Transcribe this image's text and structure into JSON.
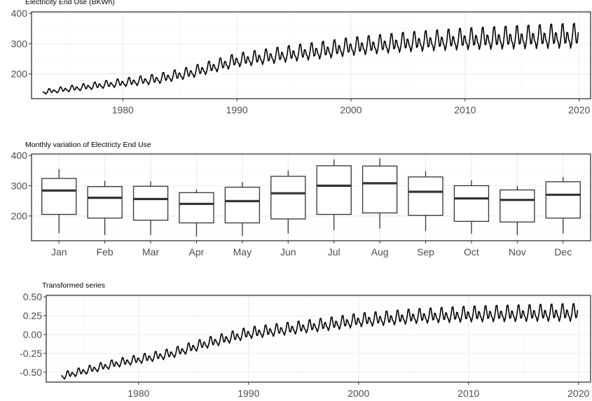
{
  "chart_data": [
    {
      "type": "line",
      "title": "Electricity End Use (BKWh)",
      "xlabel": "",
      "ylabel": "",
      "xlim": [
        1972,
        2021
      ],
      "ylim": [
        118,
        405
      ],
      "x_ticks": [
        1980,
        1990,
        2000,
        2010,
        2020
      ],
      "x_tick_labels": [
        "1980",
        "1990",
        "2000",
        "2010",
        "2020"
      ],
      "y_ticks": [
        200,
        300,
        400
      ],
      "y_tick_labels": [
        "200",
        "300",
        "400"
      ],
      "grid": true,
      "series": [
        {
          "x_range": [
            1973,
            2019.917
          ],
          "frequency": "monthly",
          "y_annual_anchors": [
            [
              1973,
              140
            ],
            [
              1978,
              163
            ],
            [
              1983,
              183
            ],
            [
              1986,
              205
            ],
            [
              1990,
              245
            ],
            [
              1995,
              268
            ],
            [
              1998,
              280
            ],
            [
              2000,
              290
            ],
            [
              2005,
              305
            ],
            [
              2010,
              315
            ],
            [
              2019,
              325
            ]
          ],
          "seasonal_amplitude": [
            [
              1973,
              8
            ],
            [
              1995,
              28
            ],
            [
              2019,
              42
            ]
          ],
          "seasonal_pattern": [
            0.25,
            -0.3,
            -0.45,
            -0.95,
            -0.6,
            0.05,
            0.95,
            1.0,
            0.2,
            -0.55,
            -0.5,
            0.3
          ]
        }
      ]
    },
    {
      "type": "boxplot",
      "title": "Monthly variation of Electricty End Use",
      "xlabel": "",
      "ylabel": "",
      "ylim": [
        118,
        405
      ],
      "y_ticks": [
        200,
        300,
        400
      ],
      "y_tick_labels": [
        "200",
        "300",
        "400"
      ],
      "grid": true,
      "categories": [
        "Jan",
        "Feb",
        "Mar",
        "Apr",
        "May",
        "Jun",
        "Jul",
        "Aug",
        "Sep",
        "Oct",
        "Nov",
        "Dec"
      ],
      "boxes": [
        {
          "min": 143,
          "q1": 205,
          "median": 284,
          "q3": 324,
          "max": 355
        },
        {
          "min": 137,
          "q1": 193,
          "median": 260,
          "q3": 297,
          "max": 316
        },
        {
          "min": 137,
          "q1": 186,
          "median": 256,
          "q3": 298,
          "max": 315
        },
        {
          "min": 132,
          "q1": 177,
          "median": 240,
          "q3": 277,
          "max": 288
        },
        {
          "min": 134,
          "q1": 177,
          "median": 249,
          "q3": 295,
          "max": 312
        },
        {
          "min": 142,
          "q1": 190,
          "median": 275,
          "q3": 331,
          "max": 350
        },
        {
          "min": 153,
          "q1": 205,
          "median": 300,
          "q3": 366,
          "max": 387
        },
        {
          "min": 158,
          "q1": 210,
          "median": 308,
          "q3": 365,
          "max": 391
        },
        {
          "min": 150,
          "q1": 202,
          "median": 280,
          "q3": 329,
          "max": 348
        },
        {
          "min": 141,
          "q1": 182,
          "median": 258,
          "q3": 300,
          "max": 318
        },
        {
          "min": 137,
          "q1": 180,
          "median": 253,
          "q3": 286,
          "max": 299
        },
        {
          "min": 142,
          "q1": 193,
          "median": 270,
          "q3": 313,
          "max": 329
        }
      ]
    },
    {
      "type": "line",
      "title": "Transformed series",
      "xlabel": "",
      "ylabel": "",
      "xlim": [
        1971.6,
        2021.1
      ],
      "ylim": [
        -0.63,
        0.52
      ],
      "x_ticks": [
        1980,
        1990,
        2000,
        2010,
        2020
      ],
      "x_tick_labels": [
        "1980",
        "1990",
        "2000",
        "2010",
        "2020"
      ],
      "y_ticks": [
        0.5,
        0.25,
        0.0,
        -0.25,
        -0.5
      ],
      "y_tick_labels": [
        "0.50",
        "0.25",
        "0.00",
        "-0.25",
        "-0.50"
      ],
      "grid": true,
      "series": [
        {
          "x_range": [
            1973,
            2019.917
          ],
          "frequency": "monthly",
          "y_annual_anchors": [
            [
              1973,
              -0.55
            ],
            [
              1978,
              -0.38
            ],
            [
              1983,
              -0.25
            ],
            [
              1986,
              -0.12
            ],
            [
              1990,
              0.02
            ],
            [
              1995,
              0.1
            ],
            [
              1998,
              0.15
            ],
            [
              2000,
              0.19
            ],
            [
              2005,
              0.24
            ],
            [
              2010,
              0.27
            ],
            [
              2019,
              0.29
            ]
          ],
          "seasonal_amplitude": [
            [
              1973,
              0.05
            ],
            [
              1990,
              0.08
            ],
            [
              2019,
              0.12
            ]
          ],
          "seasonal_pattern": [
            0.25,
            -0.3,
            -0.45,
            -0.95,
            -0.6,
            0.05,
            0.95,
            1.0,
            0.2,
            -0.55,
            -0.5,
            0.3
          ]
        }
      ]
    }
  ]
}
